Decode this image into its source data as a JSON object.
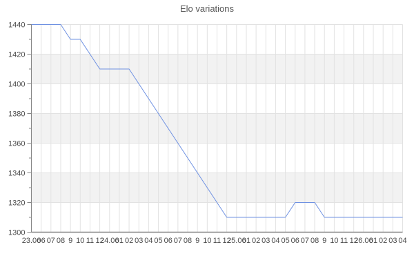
{
  "chart_data": {
    "type": "line",
    "title": "Elo variations",
    "x_tick_labels": [
      "23.06",
      "06",
      "07",
      "08",
      "9",
      "10",
      "11",
      "12",
      "24.06",
      "01",
      "02",
      "03",
      "04",
      "05",
      "06",
      "07",
      "08",
      "9",
      "10",
      "11",
      "12",
      "25.06",
      "01",
      "02",
      "03",
      "04",
      "05",
      "06",
      "07",
      "08",
      "9",
      "10",
      "11",
      "12",
      "26.06",
      "01",
      "02",
      "03",
      "04"
    ],
    "y_tick_labels": [
      "1440",
      "1420",
      "1400",
      "1380",
      "1360",
      "1340",
      "1320",
      "1300"
    ],
    "ylim": [
      1300,
      1440
    ],
    "y_major_step": 20,
    "y_minor_step": 10,
    "grid": true,
    "legend": "none",
    "alternating_bands": true,
    "series": [
      {
        "name": "Elo",
        "values": [
          1440,
          1440,
          1440,
          1440,
          1430,
          1430,
          1420,
          1410,
          1410,
          1410,
          1410,
          1400,
          1390,
          1380,
          1370,
          1360,
          1350,
          1340,
          1330,
          1320,
          1310,
          1310,
          1310,
          1310,
          1310,
          1310,
          1310,
          1320,
          1320,
          1320,
          1310,
          1310,
          1310,
          1310,
          1310,
          1310,
          1310,
          1310,
          1310
        ]
      }
    ],
    "colors": {
      "line": "#6e91e2",
      "band": "#f2f2f2",
      "grid": "#e2e2e2",
      "axis": "#858585",
      "tick_text": "#4a4a4a",
      "title_text": "#565656",
      "background": "#ffffff"
    }
  }
}
